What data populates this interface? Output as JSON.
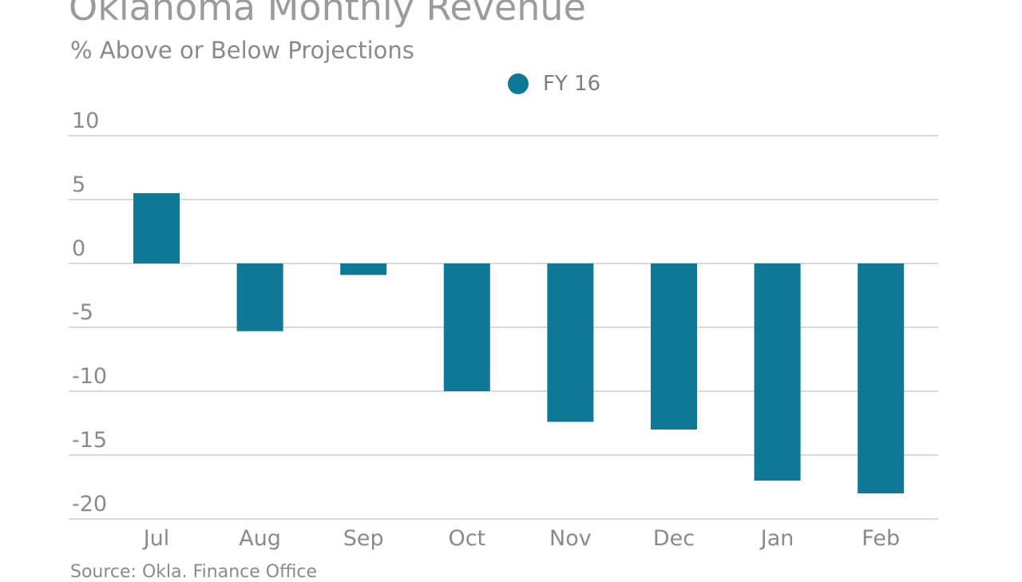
{
  "chart_data": {
    "type": "bar",
    "title": "Oklahoma Monthly Revenue",
    "subtitle": "% Above or Below Projections",
    "source": "Source: Okla. Finance Office",
    "categories": [
      "Jul",
      "Aug",
      "Sep",
      "Oct",
      "Nov",
      "Dec",
      "Jan",
      "Feb"
    ],
    "series": [
      {
        "name": "FY 16",
        "color": "#0e7896",
        "values": [
          5.5,
          -5.3,
          -0.9,
          -10.0,
          -12.4,
          -13.0,
          -17.0,
          -18.0
        ]
      }
    ],
    "yticks": [
      "10",
      "5",
      "0",
      "-5",
      "-10",
      "-15",
      "-20"
    ],
    "ylim": [
      -20,
      10
    ],
    "grid": true,
    "legend_position": "top-center"
  }
}
